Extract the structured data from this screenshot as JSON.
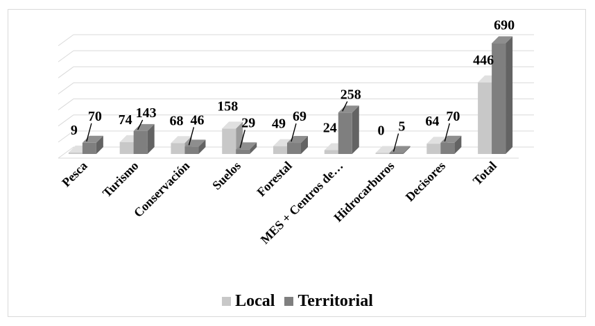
{
  "chart_data": {
    "type": "bar",
    "categories": [
      "Pesca",
      "Turismo",
      "Conservación",
      "Suelos",
      "Forestal",
      "MES + Centros de…",
      "Hidrocarburos",
      "Decisores",
      "Total"
    ],
    "series": [
      {
        "name": "Local",
        "values": [
          9,
          74,
          68,
          158,
          49,
          24,
          0,
          64,
          446
        ],
        "color": "#c8c8c8"
      },
      {
        "name": "Territorial",
        "values": [
          70,
          143,
          46,
          29,
          69,
          258,
          5,
          70,
          690
        ],
        "color": "#7f7f7f"
      }
    ],
    "ylim": [
      0,
      700
    ],
    "grid": true,
    "legend": "bottom",
    "title": "",
    "xlabel": "",
    "ylabel": ""
  }
}
